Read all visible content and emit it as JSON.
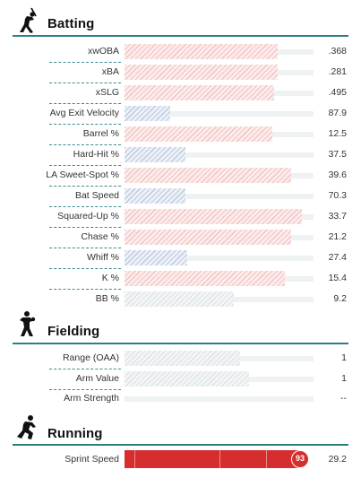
{
  "sections": {
    "batting": {
      "title": "Batting",
      "icon": "batter-icon"
    },
    "fielding": {
      "title": "Fielding",
      "icon": "fielder-icon"
    },
    "running": {
      "title": "Running",
      "icon": "runner-icon"
    }
  },
  "colors": {
    "accent_rule": "#2e7f80",
    "hot": "#d62e2e",
    "hot_light": "#f1c5c5",
    "cold_light": "#bccbe0",
    "neutral_light": "#dde3e5"
  },
  "batting": [
    {
      "label": "xwOBA",
      "value": ".368",
      "percentile": 81,
      "tone": "red"
    },
    {
      "label": "xBA",
      "value": ".281",
      "percentile": 81,
      "tone": "red"
    },
    {
      "label": "xSLG",
      "value": ".495",
      "percentile": 79,
      "tone": "red"
    },
    {
      "label": "Avg Exit Velocity",
      "value": "87.9",
      "percentile": 24,
      "tone": "blue"
    },
    {
      "label": "Barrel %",
      "value": "12.5",
      "percentile": 78,
      "tone": "red"
    },
    {
      "label": "Hard-Hit %",
      "value": "37.5",
      "percentile": 32,
      "tone": "blue"
    },
    {
      "label": "LA Sweet-Spot %",
      "value": "39.6",
      "percentile": 88,
      "tone": "red"
    },
    {
      "label": "Bat Speed",
      "value": "70.3",
      "percentile": 32,
      "tone": "blue"
    },
    {
      "label": "Squared-Up %",
      "value": "33.7",
      "percentile": 94,
      "tone": "red"
    },
    {
      "label": "Chase %",
      "value": "21.2",
      "percentile": 88,
      "tone": "red"
    },
    {
      "label": "Whiff %",
      "value": "27.4",
      "percentile": 33,
      "tone": "blue"
    },
    {
      "label": "K %",
      "value": "15.4",
      "percentile": 85,
      "tone": "red"
    },
    {
      "label": "BB %",
      "value": "9.2",
      "percentile": 58,
      "tone": "grey"
    }
  ],
  "fielding": [
    {
      "label": "Range (OAA)",
      "value": "1",
      "percentile": 61,
      "tone": "grey"
    },
    {
      "label": "Arm Value",
      "value": "1",
      "percentile": 66,
      "tone": "grey"
    },
    {
      "label": "Arm Strength",
      "value": "--",
      "percentile": 0,
      "tone": "grey"
    }
  ],
  "running": [
    {
      "label": "Sprint Speed",
      "value": "29.2",
      "percentile": 93,
      "badge": "93",
      "tone": "hot"
    }
  ]
}
